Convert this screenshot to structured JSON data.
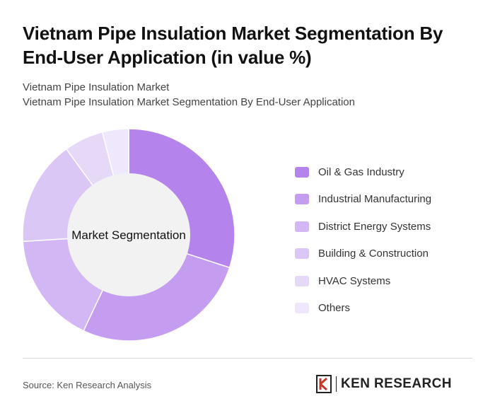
{
  "title": "Vietnam Pipe Insulation Market Segmentation By End-User Application (in value %)",
  "subtitle_lines": [
    "Vietnam Pipe Insulation Market",
    "Vietnam Pipe Insulation Market Segmentation By End-User Application"
  ],
  "chart_data": {
    "type": "pie",
    "variant": "donut",
    "center_label": "Market Segmentation",
    "unit": "%",
    "categories": [
      "Oil & Gas Industry",
      "Industrial Manufacturing",
      "District Energy Systems",
      "Building & Construction",
      "HVAC Systems",
      "Others"
    ],
    "values": [
      30,
      27,
      17,
      16,
      6,
      4
    ],
    "colors": [
      "#b583ec",
      "#c49cf0",
      "#d3b6f4",
      "#dbc7f6",
      "#e6d9f8",
      "#efe7fb"
    ],
    "legend_position": "right"
  },
  "source": "Source: Ken Research Analysis",
  "brand": "KEN RESEARCH",
  "brand_logo_icon": "ken-research-k-logo-icon"
}
